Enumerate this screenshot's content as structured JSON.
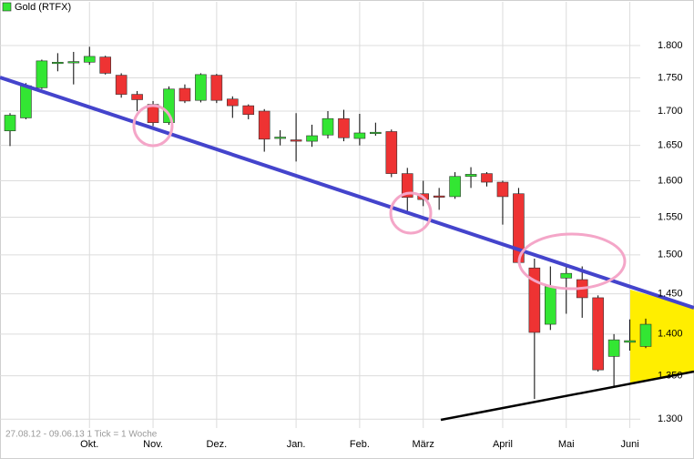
{
  "chart_data": {
    "type": "candlestick",
    "legend": "top-left",
    "footnote": "27.08.12 - 09.06.13   1 Tick = 1 Woche",
    "log_scale": true,
    "grid": true,
    "categories": [
      null,
      null,
      null,
      null,
      null,
      "Okt.",
      null,
      null,
      null,
      "Nov.",
      null,
      null,
      null,
      "Dez.",
      null,
      null,
      null,
      null,
      "Jan.",
      null,
      null,
      null,
      "Feb.",
      null,
      null,
      null,
      "März",
      null,
      null,
      null,
      null,
      "April",
      null,
      null,
      null,
      "Mai",
      null,
      null,
      null,
      "Juni",
      null
    ],
    "series": [
      {
        "name": "Gold (RTFX)",
        "up_color": "#33e633",
        "down_color": "#ee3333",
        "open": [
          1671,
          1690,
          1735,
          1772,
          1773,
          1774,
          1782,
          1754,
          1725,
          1710,
          1683,
          1734,
          1716,
          1754,
          1718,
          1708,
          1700,
          1660,
          1658,
          1656,
          1665,
          1689,
          1660,
          1668,
          1670,
          1610,
          1582,
          1579,
          1578,
          1606,
          1610,
          1598,
          1582,
          1483,
          1412,
          1470,
          1468,
          1445,
          1373,
          1390,
          1385
        ],
        "high": [
          1697,
          1742,
          1778,
          1788,
          1790,
          1798,
          1784,
          1757,
          1730,
          1715,
          1737,
          1740,
          1757,
          1756,
          1722,
          1710,
          1703,
          1672,
          1697,
          1680,
          1700,
          1702,
          1696,
          1683,
          1673,
          1618,
          1600,
          1590,
          1612,
          1619,
          1612,
          1600,
          1590,
          1495,
          1485,
          1485,
          1485,
          1448,
          1400,
          1418,
          1419
        ],
        "low": [
          1649,
          1688,
          1733,
          1760,
          1740,
          1770,
          1755,
          1720,
          1700,
          1678,
          1680,
          1712,
          1713,
          1712,
          1690,
          1688,
          1641,
          1650,
          1627,
          1648,
          1660,
          1656,
          1650,
          1664,
          1605,
          1555,
          1565,
          1560,
          1575,
          1590,
          1592,
          1540,
          1488,
          1323,
          1405,
          1425,
          1420,
          1355,
          1338,
          1380,
          1383
        ],
        "close": [
          1694,
          1738,
          1776,
          1774,
          1775,
          1783,
          1757,
          1725,
          1717,
          1683,
          1733,
          1715,
          1755,
          1716,
          1708,
          1695,
          1659,
          1662,
          1657,
          1664,
          1689,
          1661,
          1668,
          1669,
          1610,
          1577,
          1574,
          1578,
          1606,
          1609,
          1598,
          1578,
          1490,
          1402,
          1459,
          1476,
          1445,
          1357,
          1393,
          1392,
          1412
        ]
      }
    ],
    "ylim": [
      1290,
      1855
    ],
    "yticks": [
      {
        "value": 1300,
        "label": "1.300"
      },
      {
        "value": 1350,
        "label": "1.350"
      },
      {
        "value": 1400,
        "label": "1.400"
      },
      {
        "value": 1450,
        "label": "1.450"
      },
      {
        "value": 1500,
        "label": "1.500"
      },
      {
        "value": 1550,
        "label": "1.550"
      },
      {
        "value": 1600,
        "label": "1.600"
      },
      {
        "value": 1650,
        "label": "1.650"
      },
      {
        "value": 1700,
        "label": "1.700"
      },
      {
        "value": 1750,
        "label": "1.750"
      },
      {
        "value": 1800,
        "label": "1.800"
      }
    ]
  }
}
